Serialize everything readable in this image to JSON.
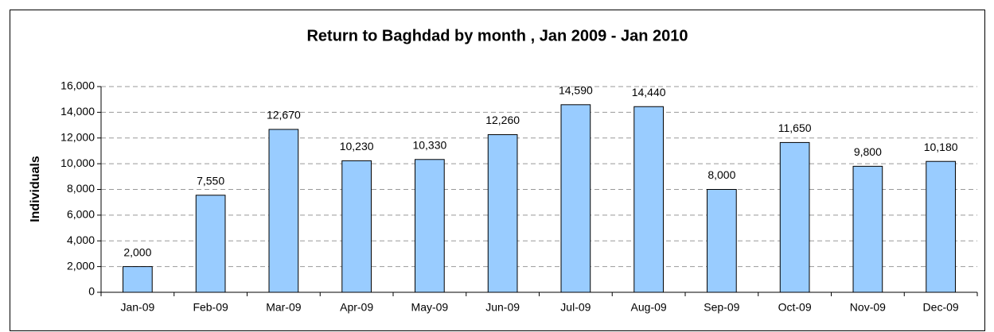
{
  "chart_data": {
    "type": "bar",
    "title": "Return to Baghdad by month , Jan 2009 - Jan 2010",
    "y_label": "Individuals",
    "categories": [
      "Jan-09",
      "Feb-09",
      "Mar-09",
      "Apr-09",
      "May-09",
      "Jun-09",
      "Jul-09",
      "Aug-09",
      "Sep-09",
      "Oct-09",
      "Nov-09",
      "Dec-09"
    ],
    "values": [
      2000,
      7550,
      12670,
      10230,
      10330,
      12260,
      14590,
      14440,
      8000,
      11650,
      9800,
      10180
    ],
    "value_labels": [
      "2,000",
      "7,550",
      "12,670",
      "10,230",
      "10,330",
      "12,260",
      "14,590",
      "14,440",
      "8,000",
      "11,650",
      "9,800",
      "10,180"
    ],
    "color": "#99ccff",
    "ylim": [
      0,
      16000
    ],
    "yticks": [
      0,
      {
        "value": 2000,
        "label": "2,000"
      },
      {
        "value": 4000,
        "label": "4,000"
      },
      {
        "value": 6000,
        "label": "6,000"
      },
      {
        "value": 8000,
        "label": "8,000"
      },
      {
        "value": 10000,
        "label": "10,000"
      },
      {
        "value": 12000,
        "label": "12,000"
      },
      {
        "value": 14000,
        "label": "14,000"
      },
      {
        "value": 16000,
        "label": "16,000"
      }
    ],
    "grid": true
  }
}
